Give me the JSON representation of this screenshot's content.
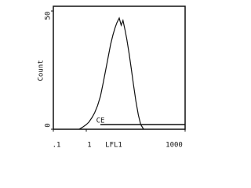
{
  "chart_data": {
    "type": "line",
    "x_label": "LFL1",
    "y_label": "Count",
    "annotation": "CE",
    "log_x": true,
    "color": "#111111",
    "x": [
      0.6,
      0.8,
      1,
      1.2,
      1.5,
      1.8,
      2.2,
      2.7,
      3.3,
      4,
      4.7,
      5.5,
      6.5,
      7.5,
      8.5,
      10,
      11.5,
      13,
      15,
      17,
      20,
      23,
      27,
      32,
      38,
      45,
      55
    ],
    "values": [
      0,
      1,
      2,
      3,
      5,
      7,
      10,
      14,
      20,
      26,
      31,
      36,
      40,
      43,
      45,
      47,
      44,
      46,
      42,
      38,
      32,
      26,
      19,
      12,
      6,
      2,
      0
    ],
    "xlim": [
      0.1,
      1000
    ],
    "xticks": [
      {
        "value": 0.1,
        "label": ".1"
      },
      1,
      1000
    ],
    "ylim": [
      0,
      52
    ],
    "yticks": [
      0,
      50
    ]
  }
}
